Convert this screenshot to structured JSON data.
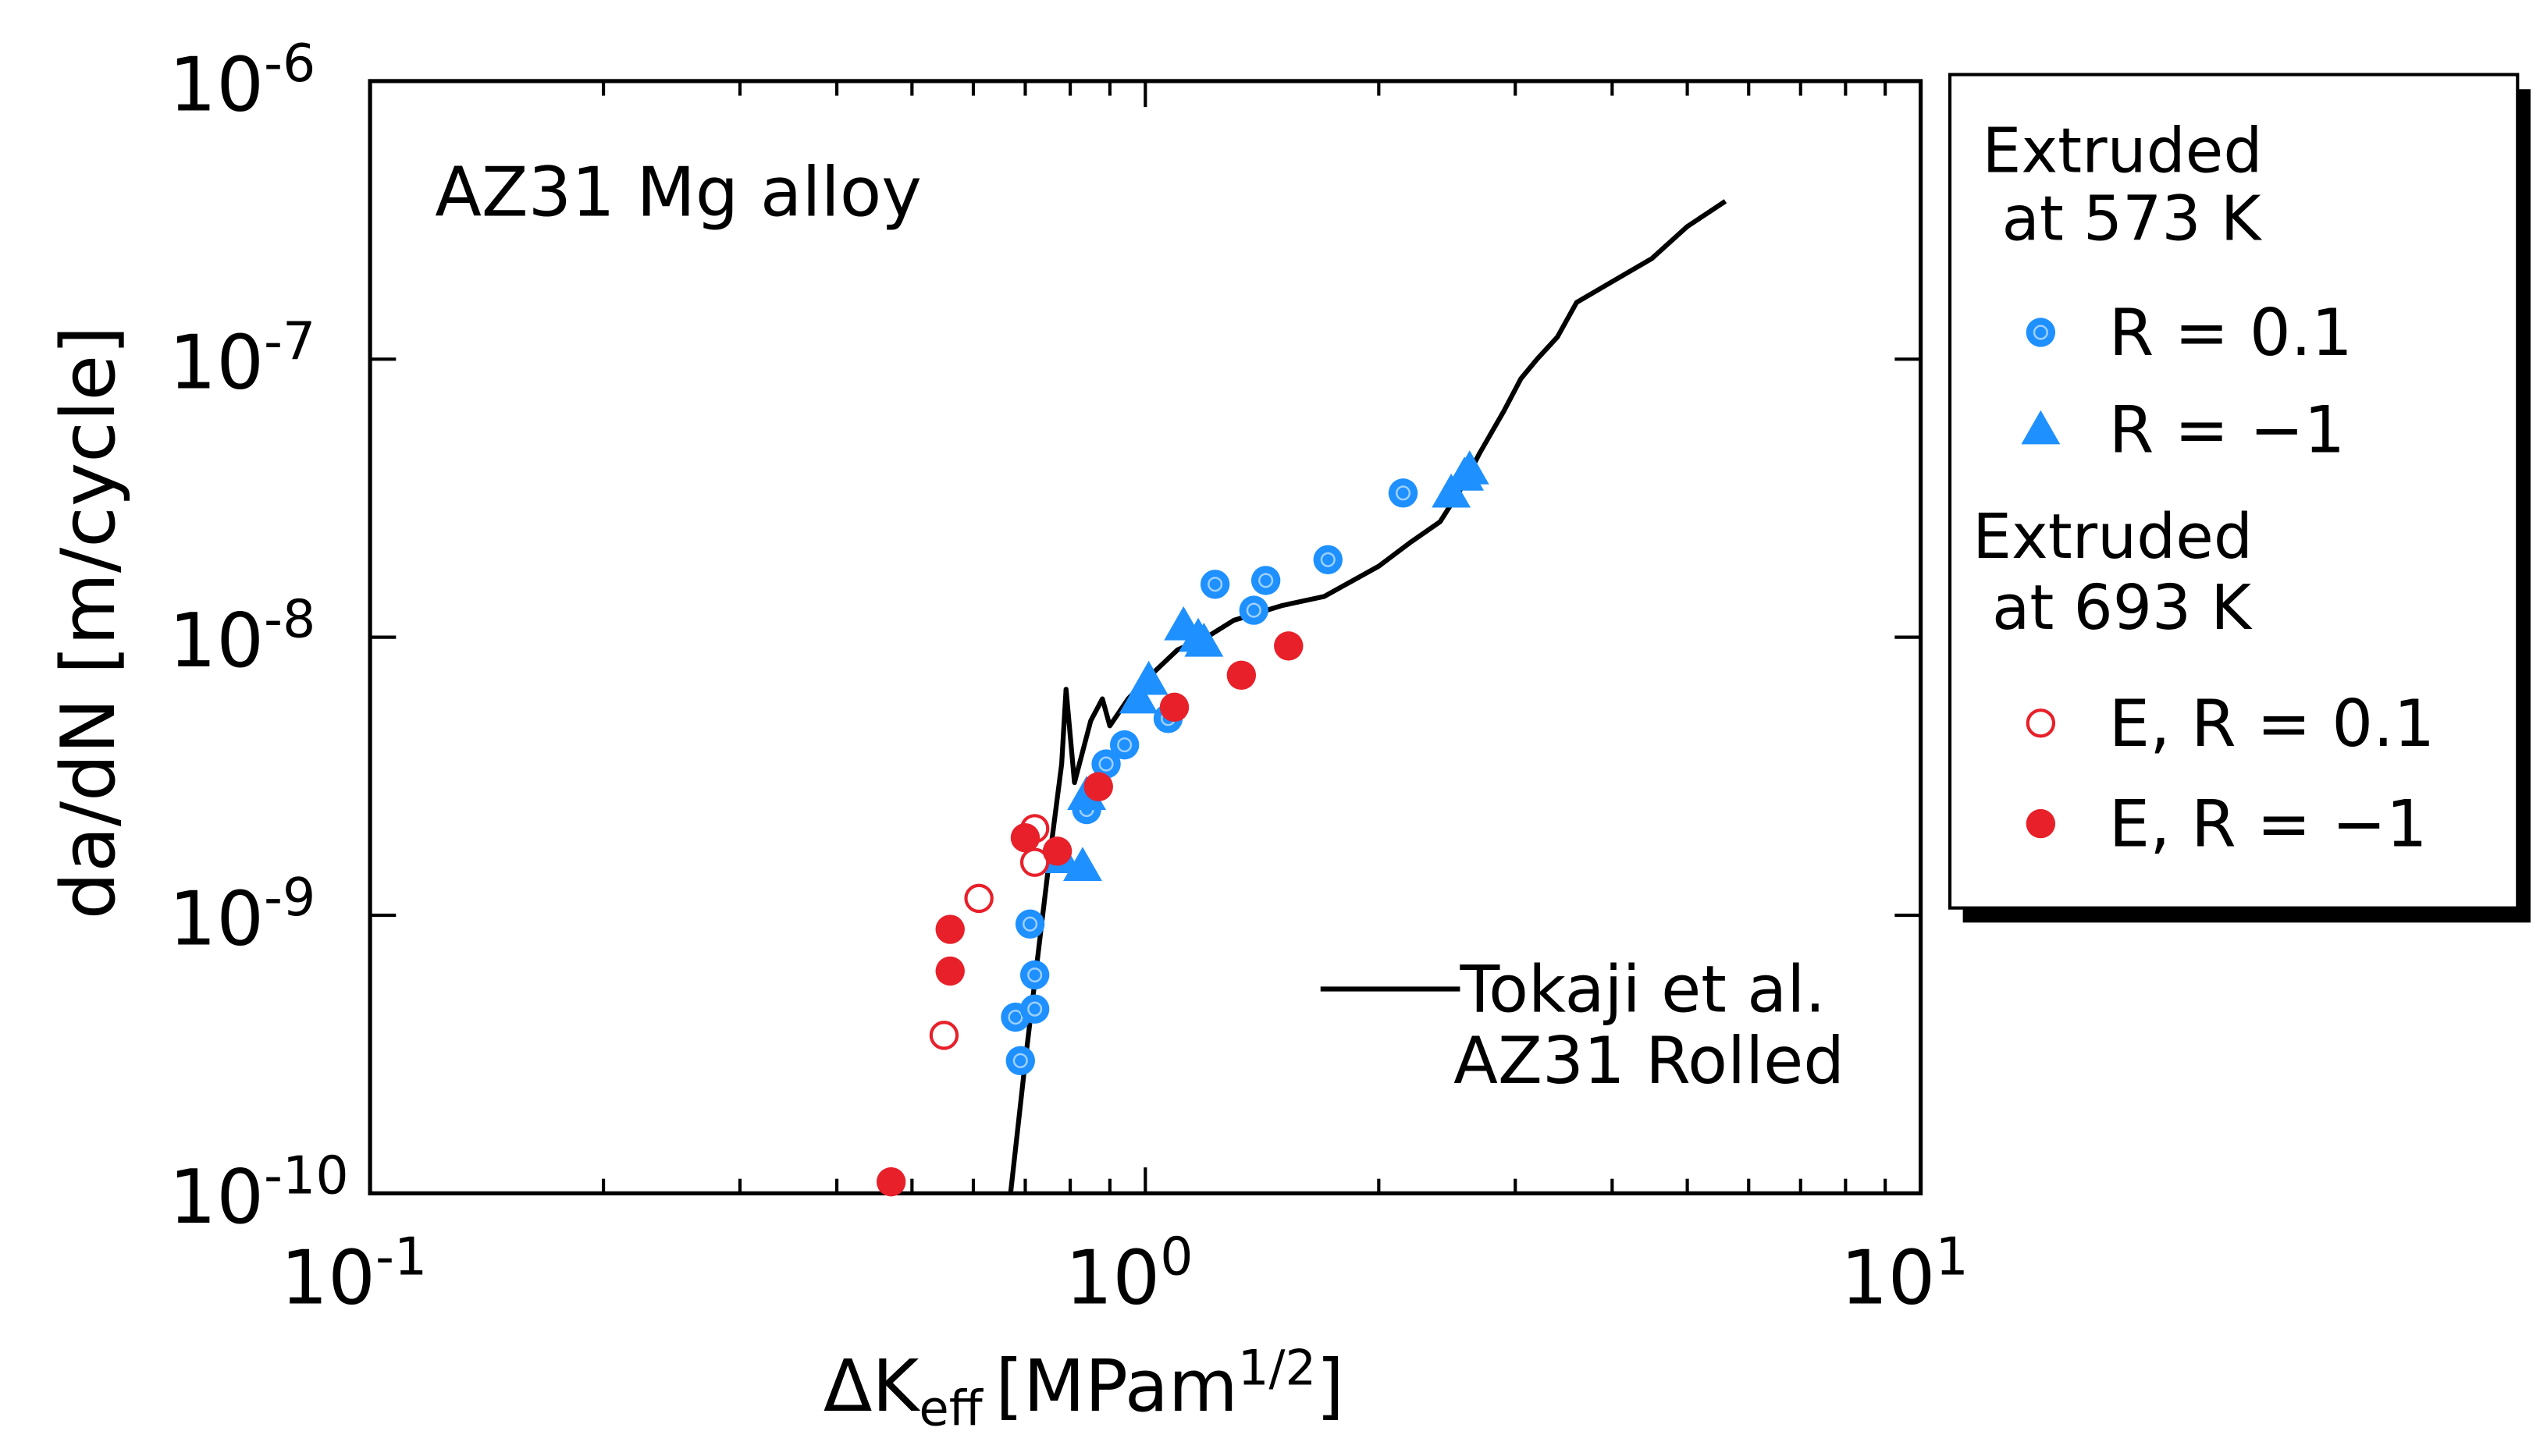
{
  "chart_data": {
    "type": "scatter",
    "annotation": "AZ31 Mg alloy",
    "xlabel": {
      "prefix": "ΔK",
      "subscript": "eff",
      "bracket": "[MPam",
      "superscript": "1/2",
      "suffix": "]"
    },
    "ylabel": "da/dN [m/cycle]",
    "xscale": "log",
    "yscale": "log",
    "xlim": [
      0.1,
      10
    ],
    "ylim": [
      1e-10,
      1e-06
    ],
    "x_ticks": [
      {
        "value": 0.1,
        "base": "10",
        "exp": "-1"
      },
      {
        "value": 1,
        "base": "10",
        "exp": "0"
      },
      {
        "value": 10,
        "base": "10",
        "exp": "1"
      }
    ],
    "y_ticks": [
      {
        "value": 1e-06,
        "base": "10",
        "exp": "-6"
      },
      {
        "value": 1e-07,
        "base": "10",
        "exp": "-7"
      },
      {
        "value": 1e-08,
        "base": "10",
        "exp": "-8"
      },
      {
        "value": 1e-09,
        "base": "10",
        "exp": "-9"
      },
      {
        "value": 1e-10,
        "base": "10",
        "exp": "-10"
      }
    ],
    "legend": {
      "placement": "outside-right",
      "group1_title": [
        "Extruded",
        "at 573 K"
      ],
      "group2_title": [
        "Extruded",
        "at 693 K"
      ]
    },
    "reference_label": [
      "Tokaji et al.",
      "AZ31 Rolled"
    ],
    "series": [
      {
        "name": "R = 0.1",
        "marker": "circle-dot",
        "color": "#1E90FF",
        "points": [
          [
            0.69,
            3e-10
          ],
          [
            0.68,
            4.3e-10
          ],
          [
            0.72,
            4.6e-10
          ],
          [
            0.72,
            6.1e-10
          ],
          [
            0.71,
            9.3e-10
          ],
          [
            0.84,
            2.4e-09
          ],
          [
            0.89,
            3.5e-09
          ],
          [
            0.94,
            4.1e-09
          ],
          [
            1.07,
            5.1e-09
          ],
          [
            1.23,
            1.55e-08
          ],
          [
            1.38,
            1.25e-08
          ],
          [
            1.43,
            1.6e-08
          ],
          [
            1.72,
            1.9e-08
          ],
          [
            2.15,
            3.3e-08
          ]
        ]
      },
      {
        "name": "R = −1",
        "marker": "triangle",
        "color": "#1E90FF",
        "points": [
          [
            0.78,
            1.6e-09
          ],
          [
            0.83,
            1.5e-09
          ],
          [
            0.84,
            2.7e-09
          ],
          [
            0.98,
            6e-09
          ],
          [
            1.01,
            7e-09
          ],
          [
            1.12,
            1.1e-08
          ],
          [
            1.17,
            1e-08
          ],
          [
            1.19,
            9.6e-09
          ],
          [
            2.48,
            3.3e-08
          ],
          [
            2.58,
            3.8e-08
          ],
          [
            2.62,
            4e-08
          ]
        ]
      },
      {
        "name": "E, R = 0.1",
        "marker": "open-circle",
        "color": "#E8202A",
        "points": [
          [
            0.55,
            3.7e-10
          ],
          [
            0.61,
            1.15e-09
          ],
          [
            0.72,
            2.05e-09
          ],
          [
            0.72,
            1.55e-09
          ]
        ]
      },
      {
        "name": "E, R = −1",
        "marker": "filled-circle",
        "color": "#E8202A",
        "points": [
          [
            0.47,
            1.1e-10
          ],
          [
            0.56,
            6.3e-10
          ],
          [
            0.56,
            8.9e-10
          ],
          [
            0.7,
            1.9e-09
          ],
          [
            0.77,
            1.7e-09
          ],
          [
            0.87,
            2.9e-09
          ],
          [
            1.09,
            5.6e-09
          ],
          [
            1.33,
            7.3e-09
          ],
          [
            1.53,
            9.3e-09
          ]
        ]
      },
      {
        "name": "Tokaji et al. AZ31 Rolled",
        "marker": "line",
        "color": "#000000",
        "points": [
          [
            0.67,
            1e-10
          ],
          [
            0.7,
            3e-10
          ],
          [
            0.75,
            1.5e-09
          ],
          [
            0.78,
            3.5e-09
          ],
          [
            0.79,
            6.5e-09
          ],
          [
            0.81,
            3e-09
          ],
          [
            0.85,
            5e-09
          ],
          [
            0.88,
            6e-09
          ],
          [
            0.9,
            4.8e-09
          ],
          [
            0.95,
            6e-09
          ],
          [
            1.0,
            7e-09
          ],
          [
            1.1,
            9e-09
          ],
          [
            1.2,
            1e-08
          ],
          [
            1.3,
            1.15e-08
          ],
          [
            1.5,
            1.3e-08
          ],
          [
            1.7,
            1.4e-08
          ],
          [
            2.0,
            1.8e-08
          ],
          [
            2.2,
            2.2e-08
          ],
          [
            2.4,
            2.6e-08
          ],
          [
            2.55,
            3.4e-08
          ],
          [
            2.7,
            4.6e-08
          ],
          [
            2.9,
            6.5e-08
          ],
          [
            3.05,
            8.5e-08
          ],
          [
            3.2,
            1e-07
          ],
          [
            3.4,
            1.2e-07
          ],
          [
            3.6,
            1.6e-07
          ],
          [
            4.0,
            1.9e-07
          ],
          [
            4.5,
            2.3e-07
          ],
          [
            5.0,
            3e-07
          ],
          [
            5.6,
            3.7e-07
          ]
        ]
      }
    ]
  }
}
